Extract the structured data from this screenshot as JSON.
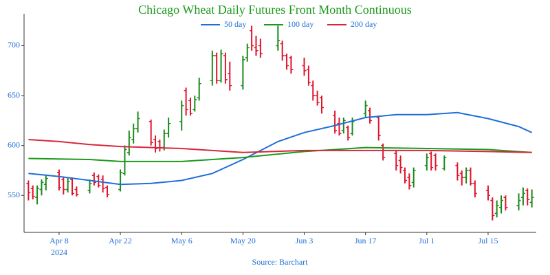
{
  "chart_data": {
    "type": "ohlc",
    "title": "Chicago Wheat Daily Futures Front Month Continuous",
    "caption": "Source: Barchart",
    "x_year_label": "2024",
    "up_color": "#1a8a1a",
    "down_color": "#e0142c",
    "xlim": [
      "2024-03-31",
      "2024-07-26"
    ],
    "xticks": [
      {
        "value": "2024-04-08",
        "label": "Apr 8"
      },
      {
        "value": "2024-04-22",
        "label": "Apr 22"
      },
      {
        "value": "2024-05-06",
        "label": "May 6"
      },
      {
        "value": "2024-05-20",
        "label": "May 20"
      },
      {
        "value": "2024-06-03",
        "label": "Jun 3"
      },
      {
        "value": "2024-06-17",
        "label": "Jun 17"
      },
      {
        "value": "2024-07-01",
        "label": "Jul 1"
      },
      {
        "value": "2024-07-15",
        "label": "Jul 15"
      }
    ],
    "ylim": [
      513,
      732
    ],
    "yticks": [
      550,
      600,
      650,
      700
    ],
    "x": [
      "2024-04-01",
      "2024-04-02",
      "2024-04-03",
      "2024-04-04",
      "2024-04-05",
      "2024-04-08",
      "2024-04-09",
      "2024-04-10",
      "2024-04-11",
      "2024-04-12",
      "2024-04-15",
      "2024-04-16",
      "2024-04-17",
      "2024-04-18",
      "2024-04-19",
      "2024-04-22",
      "2024-04-23",
      "2024-04-24",
      "2024-04-25",
      "2024-04-26",
      "2024-04-29",
      "2024-04-30",
      "2024-05-01",
      "2024-05-02",
      "2024-05-03",
      "2024-05-06",
      "2024-05-07",
      "2024-05-08",
      "2024-05-09",
      "2024-05-10",
      "2024-05-13",
      "2024-05-14",
      "2024-05-15",
      "2024-05-16",
      "2024-05-17",
      "2024-05-20",
      "2024-05-21",
      "2024-05-22",
      "2024-05-23",
      "2024-05-24",
      "2024-05-28",
      "2024-05-29",
      "2024-05-30",
      "2024-05-31",
      "2024-06-03",
      "2024-06-04",
      "2024-06-05",
      "2024-06-06",
      "2024-06-07",
      "2024-06-10",
      "2024-06-11",
      "2024-06-12",
      "2024-06-13",
      "2024-06-14",
      "2024-06-17",
      "2024-06-18",
      "2024-06-20",
      "2024-06-21",
      "2024-06-24",
      "2024-06-25",
      "2024-06-26",
      "2024-06-27",
      "2024-06-28",
      "2024-07-01",
      "2024-07-02",
      "2024-07-03",
      "2024-07-05",
      "2024-07-08",
      "2024-07-09",
      "2024-07-10",
      "2024-07-11",
      "2024-07-12",
      "2024-07-15",
      "2024-07-16",
      "2024-07-17",
      "2024-07-18",
      "2024-07-19",
      "2024-07-22",
      "2024-07-23",
      "2024-07-24",
      "2024-07-25"
    ],
    "open": [
      562,
      557,
      548,
      556,
      561,
      573,
      566,
      556,
      566,
      556,
      555,
      570,
      569,
      566,
      558,
      556,
      572,
      593,
      606,
      617,
      624,
      606,
      604,
      598,
      612,
      624,
      655,
      645,
      636,
      648,
      665,
      690,
      665,
      690,
      672,
      660,
      688,
      715,
      698,
      700,
      700,
      702,
      690,
      688,
      680,
      676,
      660,
      650,
      648,
      630,
      622,
      615,
      618,
      612,
      632,
      635,
      628,
      600,
      592,
      585,
      575,
      568,
      563,
      580,
      592,
      590,
      577,
      580,
      572,
      568,
      575,
      562,
      555,
      545,
      532,
      538,
      548,
      540,
      548,
      555,
      543
    ],
    "high": [
      565,
      560,
      560,
      566,
      570,
      576,
      569,
      568,
      568,
      559,
      566,
      573,
      571,
      570,
      560,
      576,
      600,
      615,
      622,
      634,
      626,
      610,
      606,
      616,
      628,
      645,
      658,
      648,
      650,
      668,
      695,
      693,
      696,
      693,
      684,
      690,
      702,
      720,
      710,
      707,
      720,
      705,
      692,
      690,
      688,
      680,
      665,
      655,
      650,
      635,
      628,
      628,
      620,
      628,
      645,
      638,
      630,
      602,
      595,
      590,
      578,
      572,
      578,
      592,
      594,
      592,
      590,
      583,
      575,
      578,
      578,
      565,
      560,
      548,
      545,
      550,
      550,
      552,
      558,
      557,
      556
    ],
    "low": [
      545,
      546,
      541,
      550,
      555,
      555,
      551,
      553,
      550,
      549,
      552,
      560,
      558,
      553,
      548,
      554,
      570,
      590,
      602,
      613,
      600,
      593,
      594,
      595,
      608,
      615,
      630,
      630,
      634,
      645,
      660,
      662,
      663,
      662,
      655,
      656,
      684,
      695,
      690,
      688,
      695,
      685,
      676,
      672,
      670,
      660,
      645,
      640,
      632,
      612,
      610,
      612,
      605,
      610,
      628,
      622,
      605,
      585,
      575,
      572,
      562,
      556,
      558,
      575,
      575,
      575,
      575,
      565,
      560,
      562,
      560,
      548,
      545,
      525,
      528,
      532,
      535,
      535,
      540,
      540,
      538
    ],
    "close": [
      553,
      549,
      557,
      563,
      567,
      558,
      556,
      564,
      552,
      551,
      562,
      563,
      560,
      557,
      551,
      573,
      596,
      608,
      617,
      627,
      603,
      597,
      598,
      612,
      622,
      640,
      636,
      632,
      646,
      662,
      690,
      665,
      692,
      666,
      660,
      686,
      698,
      700,
      695,
      692,
      705,
      690,
      680,
      676,
      675,
      663,
      650,
      643,
      638,
      615,
      612,
      625,
      608,
      624,
      640,
      625,
      610,
      588,
      580,
      578,
      565,
      560,
      575,
      588,
      578,
      580,
      588,
      570,
      568,
      575,
      562,
      552,
      550,
      530,
      540,
      545,
      538,
      545,
      552,
      546,
      548
    ],
    "series": [
      {
        "name": "50 day",
        "color": "#1f6fd8",
        "x": [
          "2024-04-01",
          "2024-04-08",
          "2024-04-15",
          "2024-04-22",
          "2024-04-29",
          "2024-05-06",
          "2024-05-13",
          "2024-05-20",
          "2024-05-28",
          "2024-06-03",
          "2024-06-10",
          "2024-06-17",
          "2024-06-24",
          "2024-07-01",
          "2024-07-08",
          "2024-07-15",
          "2024-07-22",
          "2024-07-25"
        ],
        "values": [
          572,
          569,
          565,
          561,
          562,
          565,
          572,
          586,
          604,
          613,
          620,
          628,
          631,
          631,
          633,
          627,
          619,
          613
        ]
      },
      {
        "name": "100 day",
        "color": "#1a9a1a",
        "x": [
          "2024-04-01",
          "2024-04-15",
          "2024-04-22",
          "2024-05-06",
          "2024-05-20",
          "2024-06-03",
          "2024-06-17",
          "2024-07-01",
          "2024-07-15",
          "2024-07-25"
        ],
        "values": [
          587,
          586,
          584,
          584,
          588,
          594,
          598,
          597,
          596,
          593
        ]
      },
      {
        "name": "200 day",
        "color": "#d9263c",
        "x": [
          "2024-04-01",
          "2024-04-08",
          "2024-04-15",
          "2024-04-22",
          "2024-05-06",
          "2024-05-20",
          "2024-06-03",
          "2024-06-17",
          "2024-07-01",
          "2024-07-15",
          "2024-07-25"
        ],
        "values": [
          606,
          604,
          601,
          599,
          597,
          593,
          595,
          595,
          595,
          594,
          593
        ]
      }
    ]
  }
}
